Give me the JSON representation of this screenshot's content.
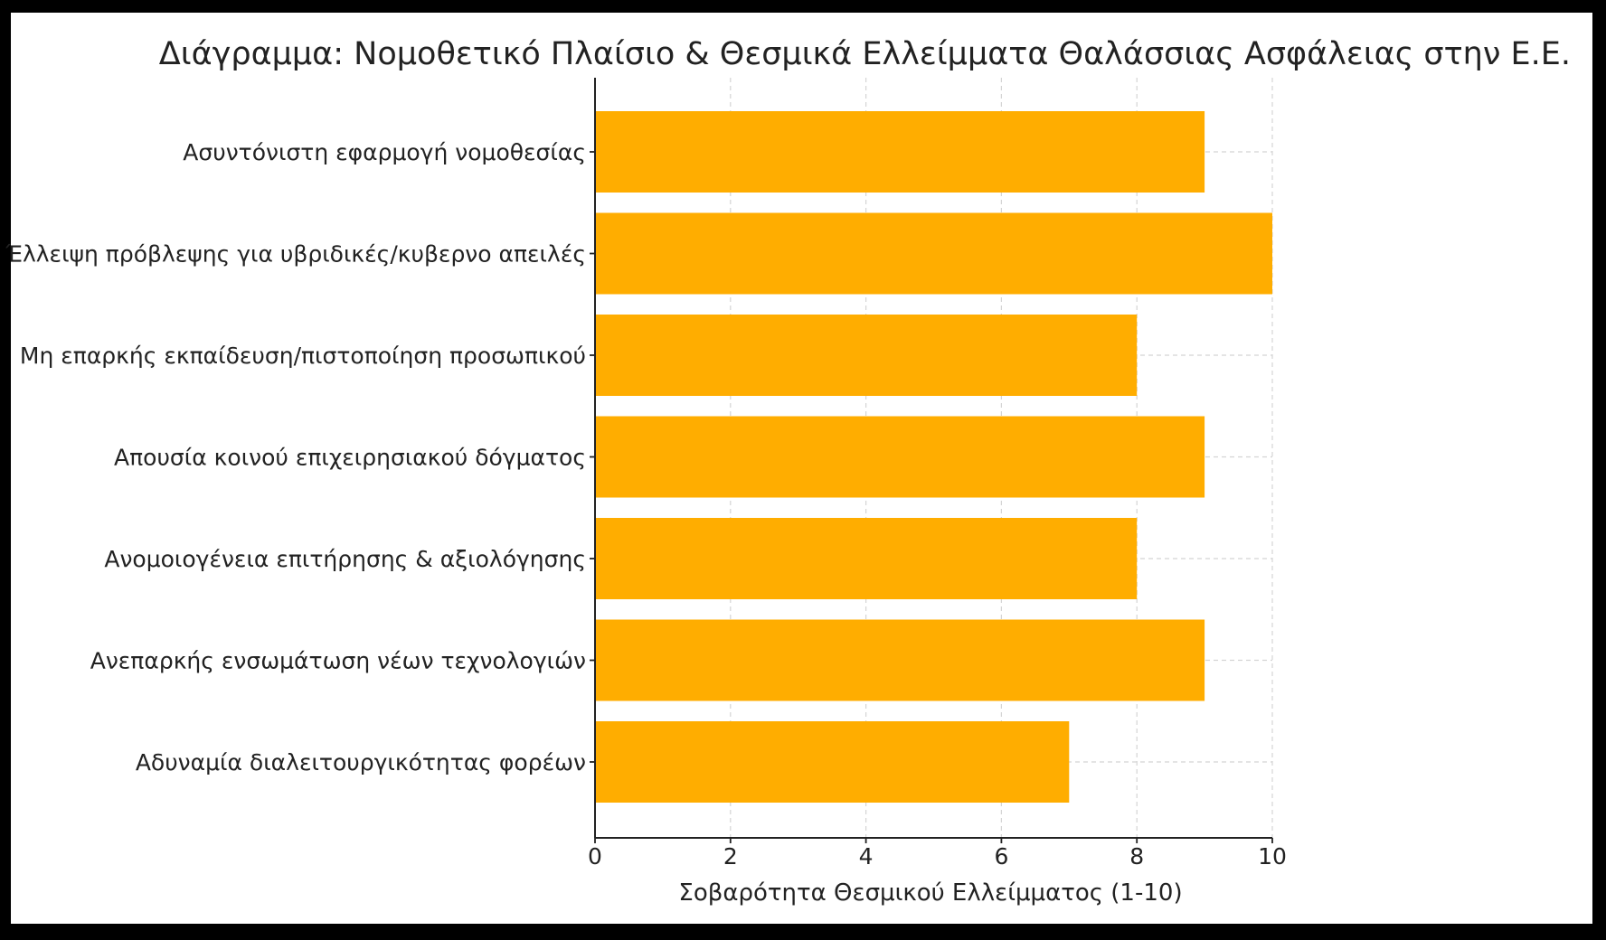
{
  "chart_data": {
    "type": "bar",
    "orientation": "horizontal",
    "title": "Διάγραμμα: Νομοθετικό Πλαίσιο & Θεσμικά Ελλείμματα Θαλάσσιας Ασφάλειας στην Ε.Ε.",
    "xlabel": "Σοβαρότητα Θεσμικού Ελλείμματος (1-10)",
    "ylabel": "",
    "categories": [
      "Ασυντόνιστη εφαρμογή νομοθεσίας",
      "Έλλειψη πρόβλεψης για υβριδικές/κυβερνο απειλές",
      "Μη επαρκής εκπαίδευση/πιστοποίηση προσωπικού",
      "Απουσία κοινού επιχειρησιακού δόγματος",
      "Ανομοιογένεια επιτήρησης & αξιολόγησης",
      "Ανεπαρκής ενσωμάτωση νέων τεχνολογιών",
      "Αδυναμία διαλειτουργικότητας φορέων"
    ],
    "values": [
      9,
      10,
      8,
      9,
      8,
      9,
      7
    ],
    "xlim": [
      0,
      10
    ],
    "xticks": [
      "0",
      "2",
      "4",
      "6",
      "8",
      "10"
    ],
    "grid": true,
    "bar_color": "#ffad00",
    "frame_color": "#000000"
  }
}
